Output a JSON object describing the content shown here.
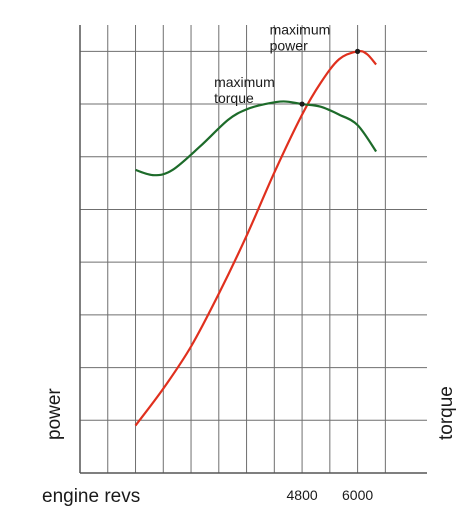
{
  "chart_data": {
    "type": "line",
    "xlabel": "engine revs",
    "ylabel_left": "power",
    "ylabel_right": "torque",
    "x_tick_labels": [
      {
        "value": 4800,
        "label": "4800"
      },
      {
        "value": 6000,
        "label": "6000"
      }
    ],
    "xlim": [
      0,
      7500
    ],
    "ylim": [
      0,
      8.5
    ],
    "grid": true,
    "colors": {
      "power": "#e0301e",
      "torque": "#1d6b2a",
      "grid": "#6f6f6f",
      "axis": "#555555"
    },
    "series": [
      {
        "key": "power",
        "points": [
          [
            1200,
            0.9
          ],
          [
            1800,
            1.6
          ],
          [
            2400,
            2.4
          ],
          [
            3000,
            3.4
          ],
          [
            3600,
            4.5
          ],
          [
            4200,
            5.7
          ],
          [
            4800,
            6.8
          ],
          [
            5200,
            7.4
          ],
          [
            5600,
            7.85
          ],
          [
            6000,
            8.0
          ],
          [
            6200,
            7.95
          ],
          [
            6400,
            7.75
          ]
        ]
      },
      {
        "key": "torque",
        "points": [
          [
            1200,
            5.75
          ],
          [
            1600,
            5.65
          ],
          [
            2000,
            5.75
          ],
          [
            2600,
            6.2
          ],
          [
            3200,
            6.7
          ],
          [
            3600,
            6.9
          ],
          [
            4000,
            7.0
          ],
          [
            4400,
            7.05
          ],
          [
            4800,
            7.0
          ],
          [
            5200,
            6.95
          ],
          [
            5600,
            6.8
          ],
          [
            6000,
            6.6
          ],
          [
            6400,
            6.1
          ]
        ]
      }
    ],
    "annotations": [
      {
        "key": "max_power",
        "lines": [
          "maximum",
          "power"
        ],
        "x": 6000,
        "y": 8.0
      },
      {
        "key": "max_torque",
        "lines": [
          "maximum",
          "torque"
        ],
        "x": 4800,
        "y": 7.0
      }
    ]
  }
}
